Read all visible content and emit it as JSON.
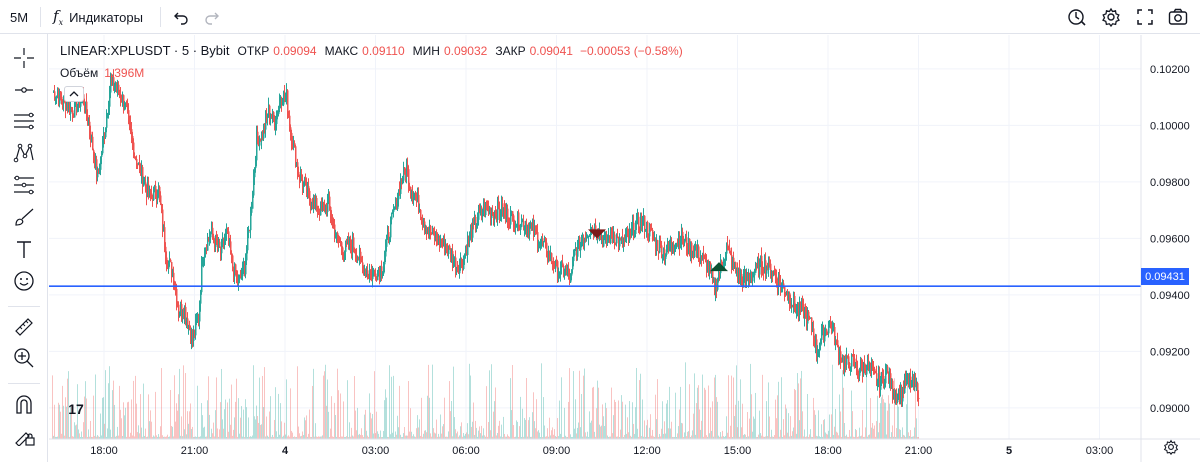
{
  "toolbar": {
    "interval": "5M",
    "indicators_label": "Индикаторы",
    "fx_glyph": "f",
    "fx_sub": "x"
  },
  "legend": {
    "symbol": "LINEAR:XPLUSDT · 5 · Bybit",
    "open_label": "ОТКР",
    "open_value": "0.09094",
    "high_label": "МАКС",
    "high_value": "0.09110",
    "low_label": "МИН",
    "low_value": "0.09032",
    "close_label": "ЗАКР",
    "close_value": "0.09041",
    "change_value": "−0.00053 (−0.58%)",
    "volume_label": "Объём",
    "volume_value": "1.396M"
  },
  "price_line": {
    "value": 0.09431,
    "label": "0.09431",
    "color": "#2962ff"
  },
  "logo_text": "17",
  "colors": {
    "up": "#26a69a",
    "down": "#ef5350",
    "grid": "#f0f3fa",
    "accent": "#2962ff",
    "marker_down": "#7b1a1a",
    "marker_up": "#0d5132"
  },
  "icons": {
    "top": [
      "undo-icon",
      "redo-icon",
      "replay-clock-icon",
      "settings-gear-icon",
      "fullscreen-icon",
      "camera-icon"
    ],
    "left": [
      "crosshair-icon",
      "line-icon",
      "channels-icon",
      "pattern-icon",
      "fib-icon",
      "brush-icon",
      "text-icon",
      "emoji-icon",
      "ruler-icon",
      "zoom-in-icon",
      "magnet-icon",
      "lock-drawings-icon"
    ]
  },
  "chart_data": {
    "type": "candlestick",
    "symbol": "LINEAR:XPLUSDT",
    "interval": "5",
    "exchange": "Bybit",
    "y_ticks": [
      "0.10200",
      "0.10000",
      "0.09800",
      "0.09600",
      "0.09400",
      "0.09200",
      "0.09000"
    ],
    "ylim": [
      0.0889,
      0.1032
    ],
    "x_ticks": [
      "18:00",
      "21:00",
      "4",
      "03:00",
      "06:00",
      "09:00",
      "12:00",
      "15:00",
      "18:00",
      "21:00",
      "5",
      "03:00"
    ],
    "close_path": [
      [
        0,
        0.1012
      ],
      [
        10,
        0.1009
      ],
      [
        20,
        0.1005
      ],
      [
        30,
        0.101
      ],
      [
        36,
        0.1001
      ],
      [
        45,
        0.0981
      ],
      [
        52,
        0.0998
      ],
      [
        58,
        0.1015
      ],
      [
        64,
        0.1013
      ],
      [
        72,
        0.1008
      ],
      [
        82,
        0.099
      ],
      [
        96,
        0.0975
      ],
      [
        106,
        0.0977
      ],
      [
        114,
        0.0953
      ],
      [
        121,
        0.0947
      ],
      [
        126,
        0.0935
      ],
      [
        132,
        0.0935
      ],
      [
        140,
        0.0924
      ],
      [
        146,
        0.0932
      ],
      [
        150,
        0.0955
      ],
      [
        158,
        0.0962
      ],
      [
        168,
        0.0955
      ],
      [
        174,
        0.0962
      ],
      [
        180,
        0.095
      ],
      [
        186,
        0.0944
      ],
      [
        192,
        0.095
      ],
      [
        198,
        0.0968
      ],
      [
        204,
        0.0995
      ],
      [
        210,
        0.0997
      ],
      [
        216,
        0.1005
      ],
      [
        222,
        0.1001
      ],
      [
        228,
        0.101
      ],
      [
        234,
        0.101
      ],
      [
        238,
        0.0998
      ],
      [
        246,
        0.0983
      ],
      [
        256,
        0.0975
      ],
      [
        266,
        0.097
      ],
      [
        276,
        0.0972
      ],
      [
        284,
        0.096
      ],
      [
        292,
        0.0956
      ],
      [
        300,
        0.0958
      ],
      [
        310,
        0.095
      ],
      [
        320,
        0.0947
      ],
      [
        330,
        0.095
      ],
      [
        336,
        0.0962
      ],
      [
        342,
        0.097
      ],
      [
        348,
        0.098
      ],
      [
        354,
        0.0985
      ],
      [
        358,
        0.0978
      ],
      [
        366,
        0.0972
      ],
      [
        374,
        0.0964
      ],
      [
        382,
        0.096
      ],
      [
        390,
        0.0958
      ],
      [
        398,
        0.0955
      ],
      [
        404,
        0.095
      ],
      [
        410,
        0.0952
      ],
      [
        418,
        0.0962
      ],
      [
        426,
        0.0968
      ],
      [
        434,
        0.0971
      ],
      [
        440,
        0.0969
      ],
      [
        448,
        0.097
      ],
      [
        456,
        0.0968
      ],
      [
        466,
        0.0966
      ],
      [
        474,
        0.0965
      ],
      [
        482,
        0.0962
      ],
      [
        490,
        0.0958
      ],
      [
        498,
        0.0953
      ],
      [
        506,
        0.0948
      ],
      [
        512,
        0.0949
      ],
      [
        518,
        0.0945
      ],
      [
        522,
        0.0955
      ],
      [
        530,
        0.096
      ],
      [
        538,
        0.0964
      ],
      [
        546,
        0.0963
      ],
      [
        552,
        0.0958
      ],
      [
        560,
        0.0962
      ],
      [
        568,
        0.0958
      ],
      [
        576,
        0.096
      ],
      [
        582,
        0.0964
      ],
      [
        590,
        0.0966
      ],
      [
        596,
        0.0963
      ],
      [
        604,
        0.0958
      ],
      [
        612,
        0.0955
      ],
      [
        620,
        0.0958
      ],
      [
        628,
        0.096
      ],
      [
        636,
        0.0957
      ],
      [
        644,
        0.0955
      ],
      [
        652,
        0.0952
      ],
      [
        658,
        0.0948
      ],
      [
        662,
        0.0942
      ],
      [
        668,
        0.095
      ],
      [
        674,
        0.0957
      ],
      [
        680,
        0.0951
      ],
      [
        690,
        0.0945
      ],
      [
        700,
        0.0947
      ],
      [
        708,
        0.0951
      ],
      [
        716,
        0.095
      ],
      [
        724,
        0.0946
      ],
      [
        730,
        0.0943
      ],
      [
        736,
        0.094
      ],
      [
        744,
        0.0935
      ],
      [
        752,
        0.0934
      ],
      [
        760,
        0.0928
      ],
      [
        764,
        0.092
      ],
      [
        770,
        0.0926
      ],
      [
        778,
        0.093
      ],
      [
        784,
        0.0922
      ],
      [
        792,
        0.0915
      ],
      [
        798,
        0.0917
      ],
      [
        806,
        0.0913
      ],
      [
        814,
        0.0915
      ],
      [
        822,
        0.0911
      ],
      [
        828,
        0.0909
      ],
      [
        834,
        0.0913
      ],
      [
        840,
        0.0906
      ],
      [
        848,
        0.0904
      ],
      [
        854,
        0.091
      ],
      [
        860,
        0.0908
      ],
      [
        866,
        0.0906
      ]
    ],
    "markers": [
      {
        "type": "sell",
        "x_index": 545
      },
      {
        "type": "buy",
        "x_index": 667
      }
    ]
  }
}
